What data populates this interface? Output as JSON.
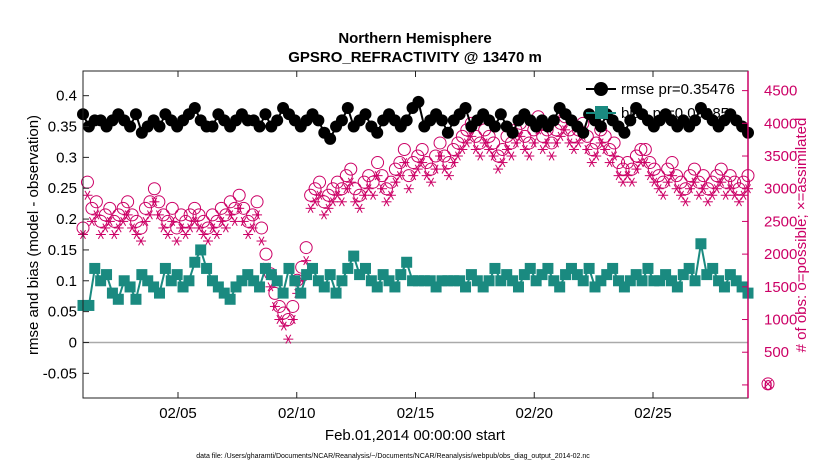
{
  "chart_data": {
    "type": "line",
    "title": "Northern Hemisphere",
    "subtitle": "GPSRO_REFRACTIVITY @ 13470 m",
    "xlabel": "Feb.01,2014 00:00:00 start",
    "ylabel": "rmse and bias (model - observation)",
    "ylabel_right": "# of obs: o=possible; ×=assimilated",
    "footer": "data file: /Users/gharamti/Documents/NCAR/Reanalysis/~/Documents/NCAR/Reanalysis/webpub/obs_diag_output_2014-02.nc",
    "x_range": [
      1,
      29
    ],
    "x_ticks": [
      5,
      10,
      15,
      20,
      25
    ],
    "x_tick_labels": [
      "02/05",
      "02/10",
      "02/15",
      "02/20",
      "02/25"
    ],
    "ylim": [
      -0.09,
      0.44
    ],
    "y_ticks": [
      -0.05,
      0,
      0.05,
      0.1,
      0.15,
      0.2,
      0.25,
      0.3,
      0.35,
      0.4
    ],
    "y_tick_labels": [
      "-0.05",
      "0",
      "0.05",
      "0.1",
      "0.15",
      "0.2",
      "0.25",
      "0.3",
      "0.35",
      "0.4"
    ],
    "ylim_right": [
      -200,
      4800
    ],
    "y_ticks_right": [
      0,
      500,
      1000,
      1500,
      2000,
      2500,
      3000,
      3500,
      4000,
      4500
    ],
    "y_tick_labels_right": [
      "0",
      "500",
      "1000",
      "1500",
      "2000",
      "2500",
      "3000",
      "3500",
      "4000",
      "4500"
    ],
    "legend": [
      {
        "name": "rmse pr=0.35476",
        "color": "#000000",
        "marker": "circle"
      },
      {
        "name": "bias pr=0.09085",
        "color": "#1a8a80",
        "marker": "square"
      }
    ],
    "legend_position": "top-right",
    "zero_line": 0,
    "colors": {
      "rmse": "#000000",
      "bias": "#1a8a80",
      "counts": "#cc0066",
      "zero_line": "#aaaaaa"
    },
    "series": [
      {
        "name": "rmse",
        "axis": "left",
        "values": [
          0.37,
          0.35,
          0.36,
          0.36,
          0.35,
          0.36,
          0.37,
          0.36,
          0.35,
          0.37,
          0.34,
          0.35,
          0.36,
          0.35,
          0.37,
          0.36,
          0.35,
          0.36,
          0.37,
          0.38,
          0.36,
          0.35,
          0.35,
          0.37,
          0.36,
          0.35,
          0.36,
          0.37,
          0.36,
          0.36,
          0.35,
          0.37,
          0.35,
          0.36,
          0.38,
          0.37,
          0.36,
          0.35,
          0.36,
          0.37,
          0.36,
          0.34,
          0.33,
          0.35,
          0.36,
          0.38,
          0.35,
          0.36,
          0.37,
          0.35,
          0.34,
          0.36,
          0.37,
          0.36,
          0.35,
          0.36,
          0.38,
          0.39,
          0.35,
          0.36,
          0.37,
          0.36,
          0.34,
          0.36,
          0.37,
          0.38,
          0.35,
          0.36,
          0.37,
          0.36,
          0.35,
          0.37,
          0.35,
          0.34,
          0.36,
          0.37,
          0.36,
          0.35,
          0.36,
          0.35,
          0.36,
          0.38,
          0.37,
          0.36,
          0.35,
          0.34,
          0.37,
          0.36,
          0.35,
          0.37,
          0.36,
          0.35,
          0.34,
          0.36,
          0.38,
          0.37,
          0.36,
          0.35,
          0.36,
          0.37,
          0.36,
          0.35,
          0.36,
          0.35,
          0.36,
          0.38,
          0.37,
          0.36,
          0.35,
          0.36,
          0.37,
          0.36,
          0.35,
          0.34
        ]
      },
      {
        "name": "bias",
        "axis": "left",
        "values": [
          0.06,
          0.06,
          0.12,
          0.1,
          0.11,
          0.08,
          0.07,
          0.1,
          0.09,
          0.07,
          0.11,
          0.1,
          0.09,
          0.08,
          0.12,
          0.1,
          0.11,
          0.09,
          0.1,
          0.13,
          0.15,
          0.12,
          0.1,
          0.09,
          0.08,
          0.07,
          0.09,
          0.1,
          0.11,
          0.1,
          0.09,
          0.12,
          0.11,
          0.1,
          0.08,
          0.12,
          0.1,
          0.08,
          0.11,
          0.12,
          0.1,
          0.09,
          0.11,
          0.08,
          0.1,
          0.12,
          0.14,
          0.11,
          0.12,
          0.1,
          0.09,
          0.11,
          0.1,
          0.09,
          0.11,
          0.13,
          0.1,
          0.1,
          0.1,
          0.1,
          0.09,
          0.1,
          0.1,
          0.1,
          0.1,
          0.09,
          0.11,
          0.1,
          0.09,
          0.1,
          0.12,
          0.1,
          0.11,
          0.1,
          0.09,
          0.11,
          0.12,
          0.1,
          0.11,
          0.12,
          0.1,
          0.09,
          0.11,
          0.12,
          0.11,
          0.1,
          0.12,
          0.09,
          0.1,
          0.11,
          0.12,
          0.1,
          0.09,
          0.1,
          0.11,
          0.1,
          0.12,
          0.1,
          0.1,
          0.11,
          0.1,
          0.09,
          0.11,
          0.12,
          0.1,
          0.16,
          0.11,
          0.12,
          0.1,
          0.09,
          0.11,
          0.1,
          0.09,
          0.08
        ]
      },
      {
        "name": "possible",
        "axis": "right",
        "values": [
          2400,
          3100,
          2700,
          2800,
          2500,
          2600,
          2700,
          2500,
          2600,
          2700,
          2800,
          2600,
          2500,
          2400,
          2700,
          2800,
          3000,
          2800,
          2600,
          2500,
          2700,
          2400,
          2600,
          2500,
          2600,
          2700,
          2600,
          2500,
          2400,
          2600,
          2500,
          2700,
          2600,
          2800,
          2700,
          2900,
          2700,
          2500,
          2600,
          2800,
          2400,
          2000,
          1700,
          1400,
          1200,
          1100,
          1000,
          1200,
          1600,
          1800,
          2100,
          2900,
          3000,
          3100,
          2800,
          2900,
          3000,
          3100,
          3000,
          3200,
          3300,
          3000,
          2900,
          3100,
          3200,
          3100,
          3400,
          3200,
          3000,
          3100,
          3300,
          3400,
          3600,
          3200,
          3400,
          3500,
          3600,
          3400,
          3300,
          3500,
          3700,
          3500,
          3400,
          3600,
          3700,
          3800,
          3900,
          4000,
          3800,
          3700,
          3900,
          3800,
          3700,
          3500,
          3600,
          3800,
          3700,
          3900,
          4000,
          3800,
          3700,
          3900,
          4100,
          3800,
          3900,
          3700,
          3900,
          4000,
          4100,
          3900,
          3800,
          3900,
          4000,
          3800,
          3600,
          3700,
          3900,
          3800,
          3600,
          3700,
          3400,
          3300,
          3400,
          3300,
          3500,
          3600,
          3600,
          3400,
          3300,
          3200,
          3100,
          3300,
          3400,
          3200,
          3100,
          3000,
          3200,
          3300,
          3100,
          3200,
          3000,
          3100,
          3200,
          3300,
          3100,
          3200,
          3100,
          3000,
          3100,
          3200
        ]
      },
      {
        "name": "assimilated",
        "axis": "right",
        "values": [
          2300,
          2900,
          2500,
          2600,
          2300,
          2400,
          2500,
          2300,
          2400,
          2500,
          2600,
          2400,
          2300,
          2200,
          2500,
          2600,
          2800,
          2600,
          2400,
          2300,
          2500,
          2200,
          2400,
          2300,
          2400,
          2500,
          2400,
          2300,
          2200,
          2400,
          2300,
          2500,
          2400,
          2600,
          2500,
          2700,
          2500,
          2300,
          2400,
          2600,
          2200,
          1800,
          1500,
          1200,
          1000,
          900,
          700,
          1000,
          1400,
          1600,
          1900,
          2700,
          2800,
          2900,
          2600,
          2700,
          2800,
          2900,
          2800,
          3000,
          3100,
          2800,
          2700,
          2900,
          3000,
          2900,
          3200,
          3000,
          2800,
          2900,
          3100,
          3200,
          3400,
          3000,
          3200,
          3300,
          3400,
          3200,
          3100,
          3300,
          3500,
          3300,
          3200,
          3400,
          3500,
          3600,
          3700,
          3800,
          3600,
          3500,
          3700,
          3600,
          3500,
          3300,
          3400,
          3600,
          3500,
          3700,
          3800,
          3600,
          3500,
          3700,
          3900,
          3600,
          3700,
          3500,
          3700,
          3800,
          3900,
          3700,
          3600,
          3700,
          3800,
          3600,
          3400,
          3500,
          3700,
          3600,
          3400,
          3500,
          3200,
          3100,
          3200,
          3100,
          3300,
          3400,
          3400,
          3200,
          3100,
          3000,
          2900,
          3100,
          3200,
          3000,
          2900,
          2800,
          3000,
          3100,
          2900,
          3000,
          2800,
          2900,
          3000,
          3100,
          2900,
          3000,
          2900,
          2800,
          2900,
          3000
        ]
      }
    ]
  }
}
